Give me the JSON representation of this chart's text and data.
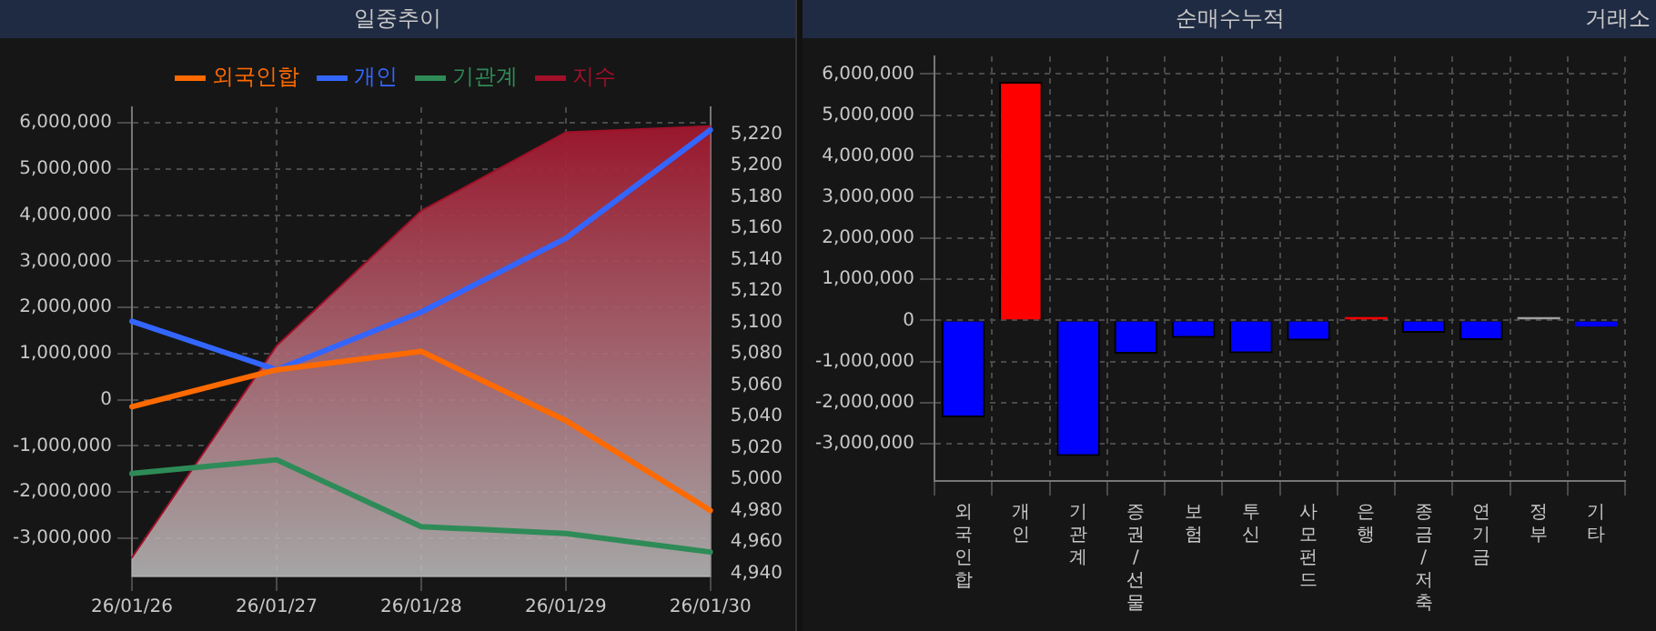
{
  "chart_data": [
    {
      "type": "line",
      "title": "일중추이",
      "categories": [
        "26/01/26",
        "26/01/27",
        "26/01/28",
        "26/01/29",
        "26/01/30"
      ],
      "series": [
        {
          "name": "외국인합",
          "color": "#ff6a00",
          "values": [
            -150000,
            650000,
            1050000,
            -450000,
            -2400000
          ]
        },
        {
          "name": "개인",
          "color": "#3366ff",
          "values": [
            1700000,
            650000,
            1900000,
            3500000,
            5850000
          ]
        },
        {
          "name": "기관계",
          "color": "#2e8b57",
          "values": [
            -1600000,
            -1300000,
            -2750000,
            -2900000,
            -3300000
          ]
        },
        {
          "name": "지수",
          "type": "area",
          "axis": "y2",
          "color": "#a01028",
          "values": [
            4950,
            5085,
            5171,
            5221,
            5225
          ]
        }
      ],
      "ylim": [
        -3830000,
        6340000
      ],
      "yticks": [
        {
          "value": -3000000,
          "label": "-3,000,000"
        },
        {
          "value": -2000000,
          "label": "-2,000,000"
        },
        {
          "value": -1000000,
          "label": "-1,000,000"
        },
        0,
        {
          "value": 1000000,
          "label": "1,000,000"
        },
        {
          "value": 2000000,
          "label": "2,000,000"
        },
        {
          "value": 3000000,
          "label": "3,000,000"
        },
        {
          "value": 4000000,
          "label": "4,000,000"
        },
        {
          "value": 5000000,
          "label": "5,000,000"
        },
        {
          "value": 6000000,
          "label": "6,000,000"
        }
      ],
      "y2lim": [
        4938,
        5237
      ],
      "y2ticks": [
        {
          "value": 4940,
          "label": "4,940"
        },
        {
          "value": 4960,
          "label": "4,960"
        },
        {
          "value": 4980,
          "label": "4,980"
        },
        {
          "value": 5000,
          "label": "5,000"
        },
        {
          "value": 5020,
          "label": "5,020"
        },
        {
          "value": 5040,
          "label": "5,040"
        },
        {
          "value": 5060,
          "label": "5,060"
        },
        {
          "value": 5080,
          "label": "5,080"
        },
        {
          "value": 5100,
          "label": "5,100"
        },
        {
          "value": 5120,
          "label": "5,120"
        },
        {
          "value": 5140,
          "label": "5,140"
        },
        {
          "value": 5160,
          "label": "5,160"
        },
        {
          "value": 5180,
          "label": "5,180"
        },
        {
          "value": 5200,
          "label": "5,200"
        },
        {
          "value": 5220,
          "label": "5,220"
        }
      ],
      "grid": true,
      "legend": "top"
    },
    {
      "type": "bar",
      "title": "순매수누적",
      "annotations": [
        "거래소"
      ],
      "categories": [
        "외국인합",
        "개인",
        "기관계",
        "증권/선물",
        "보험",
        "투신",
        "사모펀드",
        "은행",
        "종금/저축",
        "연기금",
        "정부",
        "기타"
      ],
      "values": [
        -2360000,
        5810000,
        -3300000,
        -810000,
        -420000,
        -800000,
        -490000,
        50000,
        -300000,
        -480000,
        20000,
        -150000
      ],
      "colors": [
        "#0000ff",
        "#ff0000",
        "#0000ff",
        "#0000ff",
        "#0000ff",
        "#0000ff",
        "#0000ff",
        "#ff0000",
        "#0000ff",
        "#0000ff",
        "#a0a0a0",
        "#0000ff"
      ],
      "ylim": [
        -3910000,
        6430000
      ],
      "yticks": [
        {
          "value": -3000000,
          "label": "-3,000,000"
        },
        {
          "value": -2000000,
          "label": "-2,000,000"
        },
        {
          "value": -1000000,
          "label": "-1,000,000"
        },
        0,
        {
          "value": 1000000,
          "label": "1,000,000"
        },
        {
          "value": 2000000,
          "label": "2,000,000"
        },
        {
          "value": 3000000,
          "label": "3,000,000"
        },
        {
          "value": 4000000,
          "label": "4,000,000"
        },
        {
          "value": 5000000,
          "label": "5,000,000"
        },
        {
          "value": 6000000,
          "label": "6,000,000"
        }
      ],
      "grid": true
    }
  ]
}
